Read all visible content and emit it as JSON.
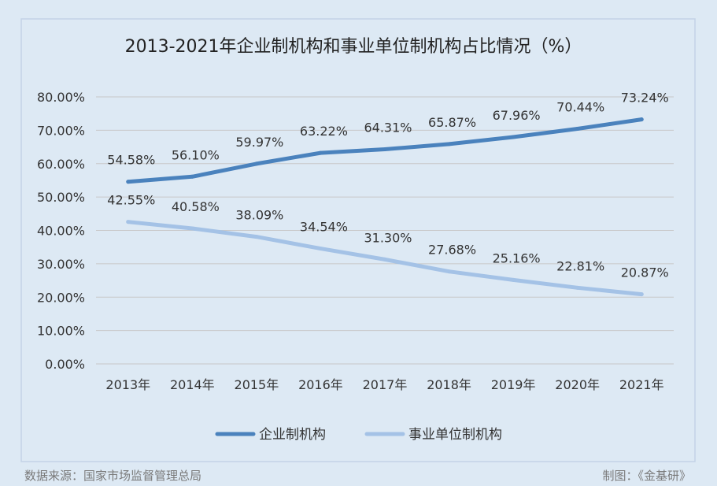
{
  "chart_data": {
    "type": "line",
    "title": "2013-2021年企业制机构和事业单位制机构占比情况（%）",
    "xlabel": "",
    "ylabel": "",
    "categories": [
      "2013年",
      "2014年",
      "2015年",
      "2016年",
      "2017年",
      "2018年",
      "2019年",
      "2020年",
      "2021年"
    ],
    "ylim": [
      0,
      80
    ],
    "yticks": [
      0,
      10,
      20,
      30,
      40,
      50,
      60,
      70,
      80
    ],
    "ytick_labels": [
      "0.00%",
      "10.00%",
      "20.00%",
      "30.00%",
      "40.00%",
      "50.00%",
      "60.00%",
      "70.00%",
      "80.00%"
    ],
    "grid": true,
    "legend_position": "bottom-center",
    "series": [
      {
        "name": "企业制机构",
        "color": "#4a82bd",
        "values": [
          54.58,
          56.1,
          59.97,
          63.22,
          64.31,
          65.87,
          67.96,
          70.44,
          73.24
        ],
        "labels": [
          "54.58%",
          "56.10%",
          "59.97%",
          "63.22%",
          "64.31%",
          "65.87%",
          "67.96%",
          "70.44%",
          "73.24%"
        ]
      },
      {
        "name": "事业单位制机构",
        "color": "#a4c2e6",
        "values": [
          42.55,
          40.58,
          38.09,
          34.54,
          31.3,
          27.68,
          25.16,
          22.81,
          20.87
        ],
        "labels": [
          "42.55%",
          "40.58%",
          "38.09%",
          "34.54%",
          "31.30%",
          "27.68%",
          "25.16%",
          "22.81%",
          "20.87%"
        ]
      }
    ]
  },
  "footer": {
    "source": "数据来源：国家市场监督管理总局",
    "credit": "制图：《金基研》"
  },
  "colors": {
    "background": "#dde9f4",
    "frame": "#c3d3e6",
    "grid": "#c8c8c8",
    "text": "#333333",
    "footer_text": "#7a7a7a"
  }
}
